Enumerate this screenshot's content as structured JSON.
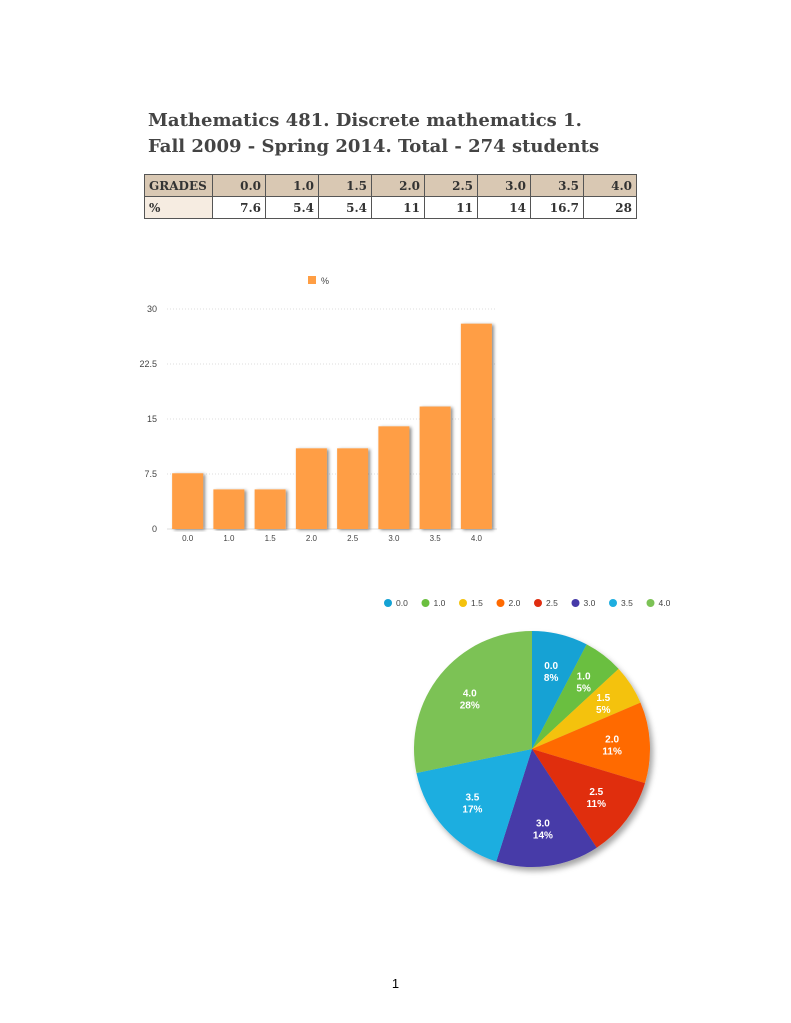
{
  "header": {
    "line1": "Mathematics 481. Discrete mathematics 1.",
    "line2": "Fall 2009 - Spring 2014. Total - 274 students"
  },
  "table": {
    "header_label": "GRADES",
    "grades": [
      "0.0",
      "1.0",
      "1.5",
      "2.0",
      "2.5",
      "3.0",
      "3.5",
      "4.0"
    ],
    "row_label": "%",
    "values": [
      "7.6",
      "5.4",
      "5.4",
      "11",
      "11",
      "14",
      "16.7",
      "28"
    ]
  },
  "chart_data": [
    {
      "type": "bar",
      "categories": [
        "0.0",
        "1.0",
        "1.5",
        "2.0",
        "2.5",
        "3.0",
        "3.5",
        "4.0"
      ],
      "series": [
        {
          "name": "%",
          "values": [
            7.6,
            5.4,
            5.4,
            11,
            11,
            14,
            16.7,
            28
          ],
          "color": "#ff9e44"
        }
      ],
      "ylim": [
        0,
        30
      ],
      "yticks": [
        "0",
        "7.5",
        "15",
        "22.5",
        "30"
      ],
      "ytick_values": [
        0,
        7.5,
        15,
        22.5,
        30
      ],
      "grid": true,
      "legend": "top"
    },
    {
      "type": "pie",
      "labels": [
        "0.0",
        "1.0",
        "1.5",
        "2.0",
        "2.5",
        "3.0",
        "3.5",
        "4.0"
      ],
      "values": [
        7.6,
        5.4,
        5.4,
        11,
        11,
        14,
        16.7,
        28
      ],
      "slice_labels": [
        "8%",
        "5%",
        "5%",
        "11%",
        "11%",
        "14%",
        "17%",
        "28%"
      ],
      "colors": [
        "#14a2d4",
        "#6bbf3f",
        "#f4c20d",
        "#ff6a00",
        "#e02d10",
        "#463aa8",
        "#1eaee0",
        "#7cc255"
      ],
      "legend": "top"
    }
  ],
  "footer": {
    "page_number": "1"
  }
}
